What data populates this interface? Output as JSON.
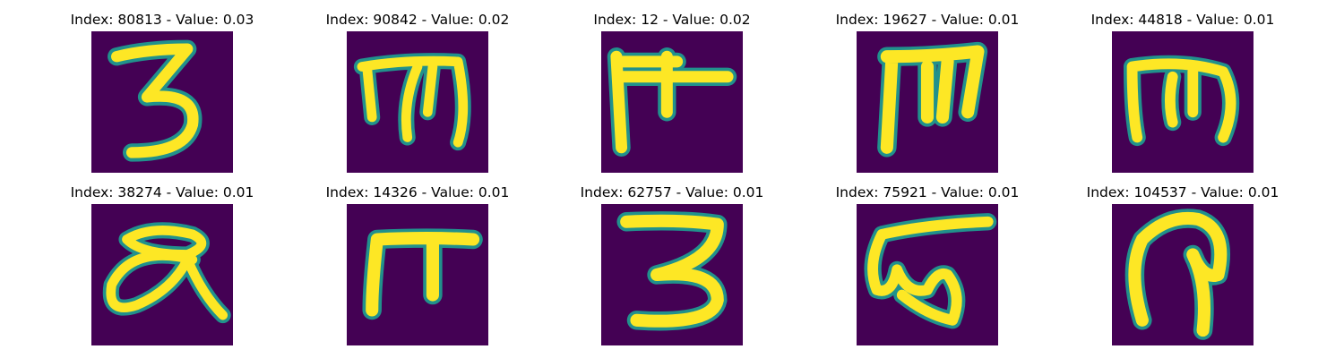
{
  "palette": {
    "background": "#440154",
    "edge": "#21918c",
    "stroke": "#fde725"
  },
  "panels": [
    {
      "title": "Index: 80813 - Value: 0.03",
      "glyph": "three-shaped character"
    },
    {
      "title": "Index: 90842 - Value: 0.02",
      "glyph": "m-shaped character"
    },
    {
      "title": "Index: 12 - Value: 0.02",
      "glyph": "pi-with-cross character"
    },
    {
      "title": "Index: 19627 - Value: 0.01",
      "glyph": "m-shaped character"
    },
    {
      "title": "Index: 44818 - Value: 0.01",
      "glyph": "m-shaped character"
    },
    {
      "title": "Index: 38274 - Value: 0.01",
      "glyph": "loop character"
    },
    {
      "title": "Index: 14326 - Value: 0.01",
      "glyph": "pi-shaped character"
    },
    {
      "title": "Index: 62757 - Value: 0.01",
      "glyph": "three-shaped character"
    },
    {
      "title": "Index: 75921 - Value: 0.01",
      "glyph": "w-shaped character"
    },
    {
      "title": "Index: 104537 - Value: 0.01",
      "glyph": "hook character"
    }
  ]
}
